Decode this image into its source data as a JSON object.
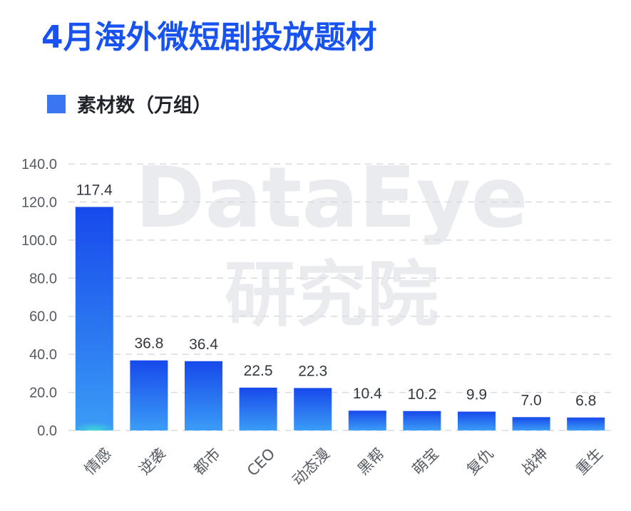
{
  "colors": {
    "title": "#1853f2",
    "bar_top": "#1749eb",
    "bar_bottom": "#3b9cf6",
    "bar_base_accent": "#3ee0d0",
    "legend": "#3a76f2",
    "grid": "#d9dbe0",
    "tick_text": "#555a63",
    "label_text": "#333840",
    "watermark": "#e9ebef"
  },
  "page": {
    "title": "4月海外微短剧投放题材"
  },
  "watermark": {
    "line1": "DataEye",
    "line2": "研究院"
  },
  "chart_data": {
    "type": "bar",
    "title": "4月海外微短剧投放题材",
    "categories": [
      "情感",
      "逆袭",
      "都市",
      "CEO",
      "动态漫",
      "黑帮",
      "萌宝",
      "复仇",
      "战神",
      "重生"
    ],
    "series": [
      {
        "name": "素材数（万组）",
        "values": [
          117.4,
          36.8,
          36.4,
          22.5,
          22.3,
          10.4,
          10.2,
          9.9,
          7.0,
          6.8
        ]
      }
    ],
    "value_labels": [
      "117.4",
      "36.8",
      "36.4",
      "22.5",
      "22.3",
      "10.4",
      "10.2",
      "9.9",
      "7.0",
      "6.8"
    ],
    "yticks": [
      "0.0",
      "20.0",
      "40.0",
      "60.0",
      "80.0",
      "100.0",
      "120.0",
      "140.0"
    ],
    "ylim": [
      0,
      140
    ],
    "grid": true,
    "legend_position": "top-left"
  }
}
